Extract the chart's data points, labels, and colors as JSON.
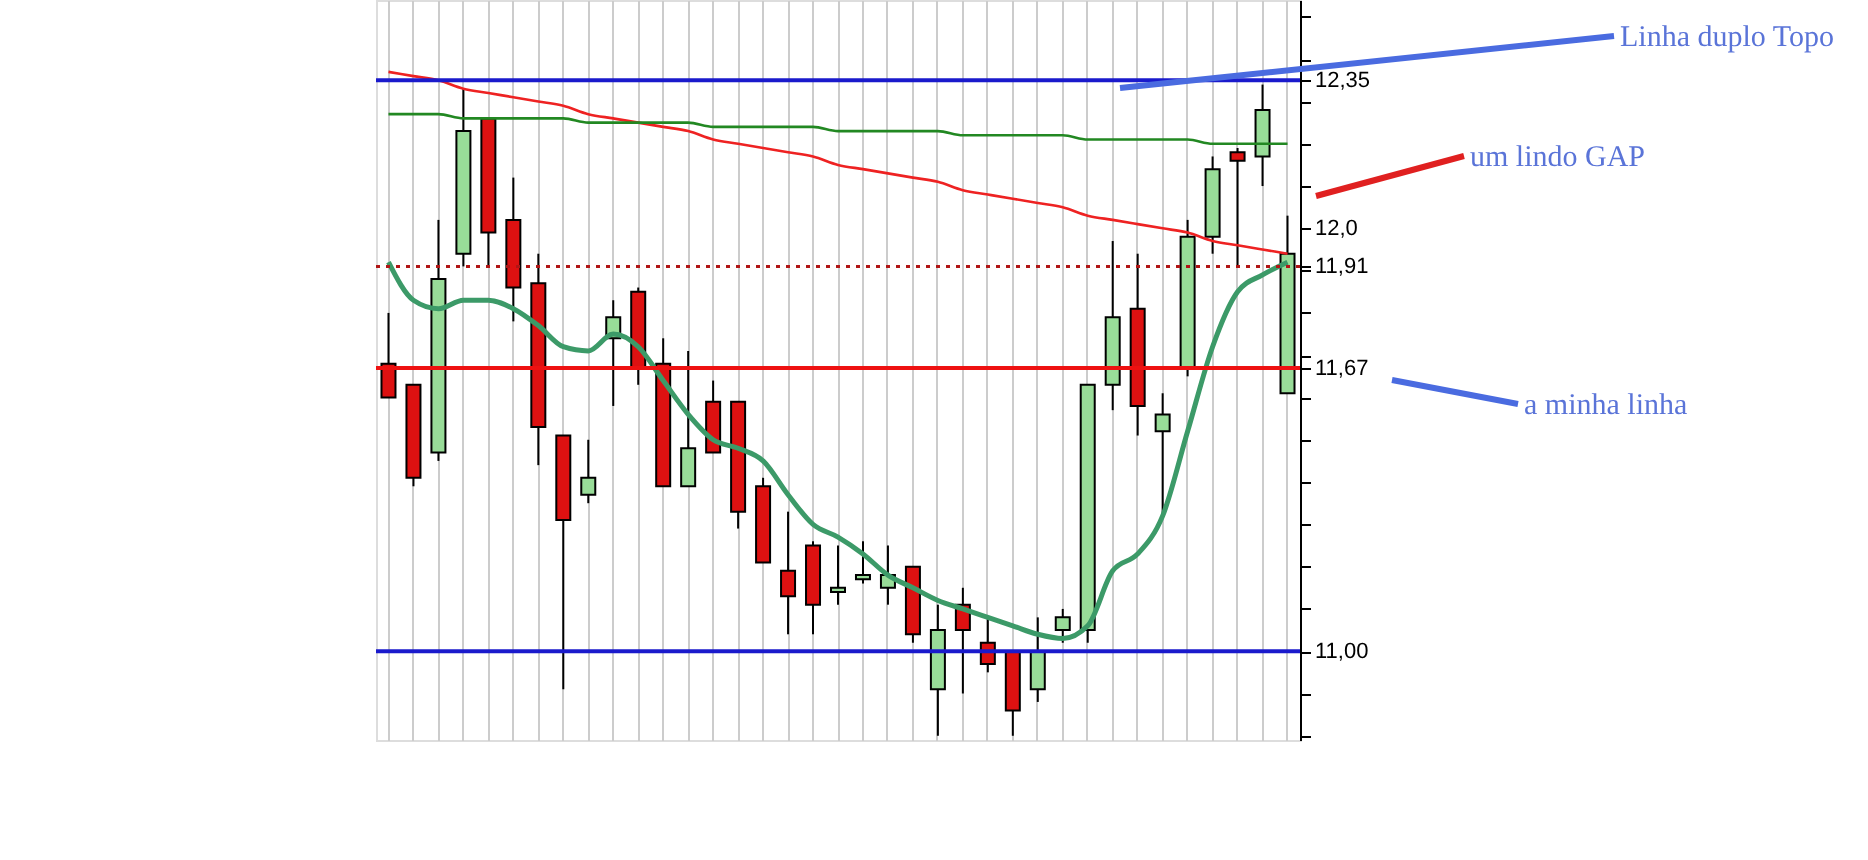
{
  "chart_data": {
    "type": "candlestick",
    "categories": [
      null,
      null,
      null,
      null,
      null,
      null,
      null,
      null,
      null,
      null,
      null,
      null,
      null,
      null,
      null,
      null,
      null,
      null,
      null,
      null,
      null,
      null,
      null,
      null,
      null,
      null,
      null,
      null,
      null,
      null,
      null,
      null,
      null,
      null,
      null,
      null,
      null
    ],
    "ohlc": [
      [
        11.68,
        11.8,
        11.6,
        11.6
      ],
      [
        11.63,
        11.63,
        11.39,
        11.41
      ],
      [
        11.47,
        12.02,
        11.45,
        11.88
      ],
      [
        11.94,
        12.33,
        11.91,
        12.23
      ],
      [
        12.26,
        12.26,
        11.91,
        11.99
      ],
      [
        12.02,
        12.12,
        11.78,
        11.86
      ],
      [
        11.87,
        11.94,
        11.44,
        11.53
      ],
      [
        11.51,
        11.51,
        10.91,
        11.31
      ],
      [
        11.37,
        11.5,
        11.35,
        11.41
      ],
      [
        11.74,
        11.83,
        11.58,
        11.79
      ],
      [
        11.85,
        11.86,
        11.63,
        11.67
      ],
      [
        11.68,
        11.74,
        11.39,
        11.39
      ],
      [
        11.39,
        11.71,
        11.39,
        11.48
      ],
      [
        11.59,
        11.64,
        11.47,
        11.47
      ],
      [
        11.59,
        11.59,
        11.29,
        11.33
      ],
      [
        11.39,
        11.41,
        11.21,
        11.21
      ],
      [
        11.19,
        11.33,
        11.04,
        11.13
      ],
      [
        11.25,
        11.26,
        11.04,
        11.11
      ],
      [
        11.14,
        11.25,
        11.11,
        11.15
      ],
      [
        11.17,
        11.26,
        11.16,
        11.18
      ],
      [
        11.15,
        11.25,
        11.11,
        11.18
      ],
      [
        11.2,
        11.2,
        11.02,
        11.04
      ],
      [
        10.91,
        11.11,
        10.8,
        11.05
      ],
      [
        11.11,
        11.15,
        10.9,
        11.05
      ],
      [
        11.02,
        11.08,
        10.95,
        10.97
      ],
      [
        11.0,
        11.0,
        10.8,
        10.86
      ],
      [
        10.91,
        11.08,
        10.88,
        11.0
      ],
      [
        11.05,
        11.1,
        11.02,
        11.08
      ],
      [
        11.05,
        11.63,
        11.02,
        11.63
      ],
      [
        11.63,
        11.97,
        11.57,
        11.79
      ],
      [
        11.81,
        11.94,
        11.51,
        11.58
      ],
      [
        11.52,
        11.61,
        11.32,
        11.56
      ],
      [
        11.67,
        12.02,
        11.65,
        11.98
      ],
      [
        11.98,
        12.17,
        11.94,
        12.14
      ],
      [
        12.18,
        12.19,
        11.91,
        12.16
      ],
      [
        12.17,
        12.34,
        12.1,
        12.28
      ],
      [
        11.61,
        12.03,
        11.61,
        11.94
      ]
    ],
    "colors": [
      "#dd1111",
      "#dd1111",
      "#98dc98",
      "#98dc98",
      "#dd1111",
      "#dd1111",
      "#dd1111",
      "#dd1111",
      "#98dc98",
      "#98dc98",
      "#dd1111",
      "#dd1111",
      "#98dc98",
      "#dd1111",
      "#dd1111",
      "#dd1111",
      "#dd1111",
      "#dd1111",
      "#98dc98",
      "#98dc98",
      "#98dc98",
      "#dd1111",
      "#98dc98",
      "#dd1111",
      "#dd1111",
      "#dd1111",
      "#98dc98",
      "#98dc98",
      "#98dc98",
      "#98dc98",
      "#dd1111",
      "#98dc98",
      "#98dc98",
      "#98dc98",
      "#dd1111",
      "#98dc98",
      "#98dc98"
    ],
    "series": [
      {
        "type": "line",
        "color": "#3c9a68",
        "values": [
          11.92,
          11.83,
          11.81,
          11.83,
          11.83,
          11.81,
          11.77,
          11.72,
          11.71,
          11.75,
          11.72,
          11.64,
          11.56,
          11.5,
          11.48,
          11.45,
          11.37,
          11.3,
          11.27,
          11.23,
          11.18,
          11.15,
          11.12,
          11.1,
          11.08,
          11.06,
          11.04,
          11.03,
          11.06,
          11.19,
          11.23,
          11.32,
          11.52,
          11.72,
          11.85,
          11.89,
          11.92
        ]
      },
      {
        "type": "line",
        "color": "#ee2222",
        "values": [
          12.37,
          12.36,
          12.35,
          12.33,
          12.32,
          12.31,
          12.3,
          12.29,
          12.27,
          12.26,
          12.25,
          12.24,
          12.23,
          12.21,
          12.2,
          12.19,
          12.18,
          12.17,
          12.15,
          12.14,
          12.13,
          12.12,
          12.11,
          12.09,
          12.08,
          12.07,
          12.06,
          12.05,
          12.03,
          12.02,
          12.01,
          12.0,
          11.99,
          11.97,
          11.96,
          11.95,
          11.94
        ]
      },
      {
        "type": "line",
        "color": "#228822",
        "values": [
          12.27,
          12.27,
          12.27,
          12.26,
          12.26,
          12.26,
          12.26,
          12.26,
          12.25,
          12.25,
          12.25,
          12.25,
          12.25,
          12.24,
          12.24,
          12.24,
          12.24,
          12.24,
          12.23,
          12.23,
          12.23,
          12.23,
          12.23,
          12.22,
          12.22,
          12.22,
          12.22,
          12.22,
          12.21,
          12.21,
          12.21,
          12.21,
          12.21,
          12.2,
          12.2,
          12.2,
          12.2
        ]
      }
    ],
    "ylim": [
      10.79,
      12.54
    ],
    "yticks": [
      {
        "value": 10.8,
        "label": null
      },
      {
        "value": 10.9,
        "label": null
      },
      {
        "value": 11.0,
        "label": "11,00"
      },
      {
        "value": 11.1,
        "label": null
      },
      {
        "value": 11.2,
        "label": null
      },
      {
        "value": 11.3,
        "label": null
      },
      {
        "value": 11.4,
        "label": null
      },
      {
        "value": 11.5,
        "label": null
      },
      {
        "value": 11.6,
        "label": null
      },
      {
        "value": 11.67,
        "label": "11,67"
      },
      {
        "value": 11.7,
        "label": null
      },
      {
        "value": 11.8,
        "label": null
      },
      {
        "value": 11.9,
        "label": null
      },
      {
        "value": 11.91,
        "label": "11,91"
      },
      {
        "value": 12.0,
        "label": "12,0"
      },
      {
        "value": 12.1,
        "label": null
      },
      {
        "value": 12.2,
        "label": null
      },
      {
        "value": 12.3,
        "label": null
      },
      {
        "value": 12.35,
        "label": "12,35"
      },
      {
        "value": 12.4,
        "label": null
      },
      {
        "value": 12.5,
        "label": null
      }
    ],
    "ref_lines": [
      {
        "axis": "y",
        "value": 12.35,
        "color": "#1a1acc",
        "line_style": "solid"
      },
      {
        "axis": "y",
        "value": 11.91,
        "color": "#b01515",
        "line_style": "dotted"
      },
      {
        "axis": "y",
        "value": 11.67,
        "color": "#ee1111",
        "line_style": "solid"
      },
      {
        "axis": "y",
        "value": 11.0,
        "color": "#1a1acc",
        "line_style": "solid"
      }
    ],
    "annotations": [
      "Linha duplo Topo",
      "um lindo GAP",
      "a minha linha"
    ],
    "grid": "x",
    "tick_labels": "y"
  }
}
